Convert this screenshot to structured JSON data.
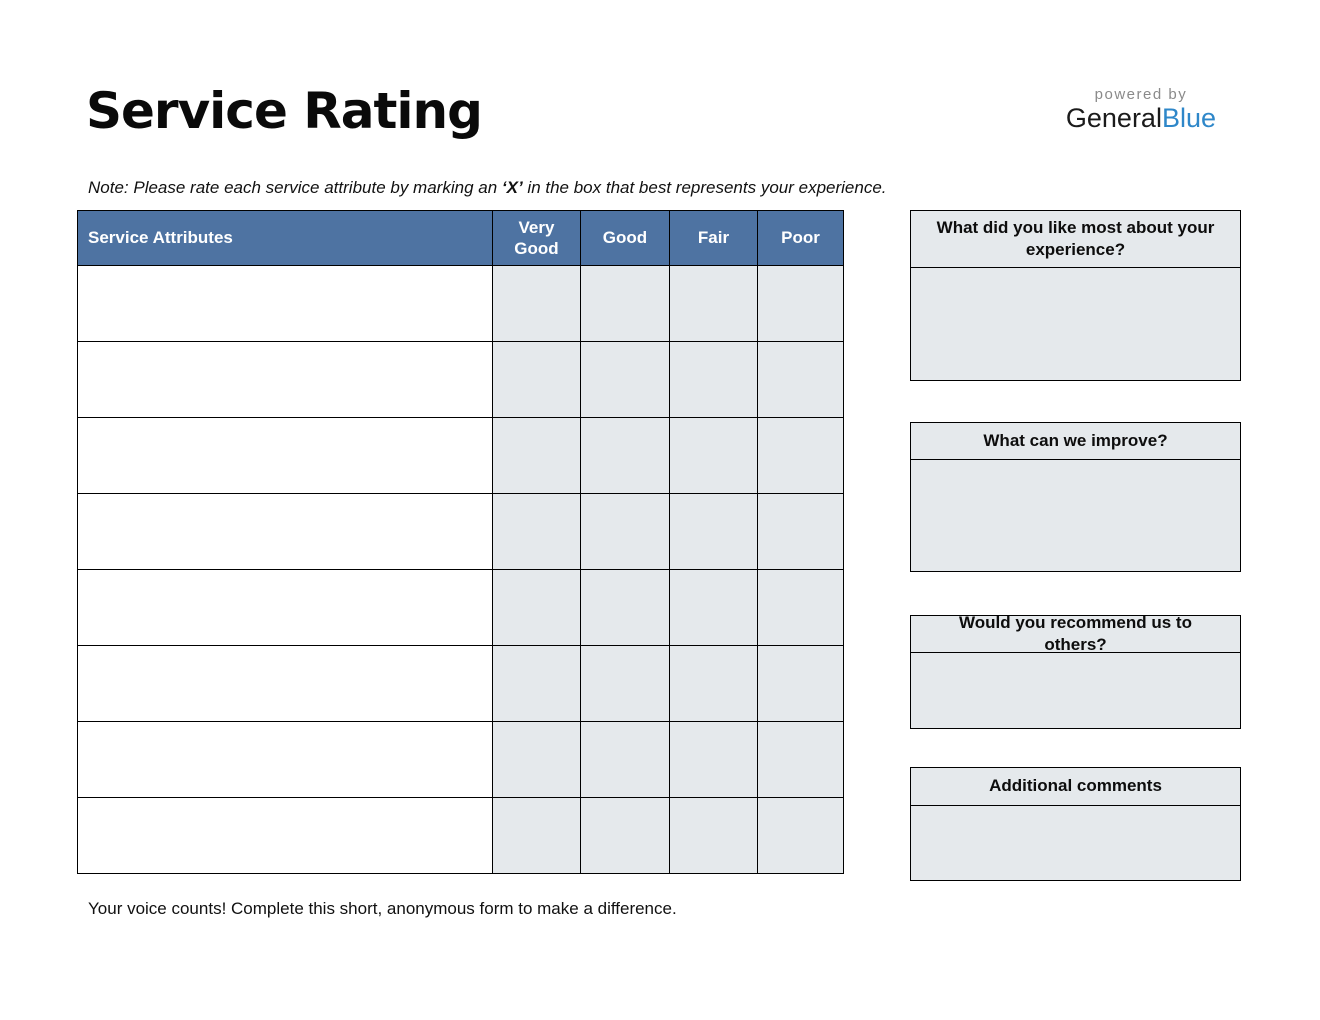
{
  "page": {
    "title": "Service Rating",
    "note_prefix": "Note: Please rate each service attribute by marking an ",
    "note_bold": "‘X’",
    "note_suffix": " in the box that best represents your experience.",
    "footer": "Your voice counts! Complete this short, anonymous form to make a difference."
  },
  "branding": {
    "powered_by": "powered by",
    "brand_first": "General",
    "brand_second": "Blue"
  },
  "colors": {
    "table_header_bg": "#4e73a2",
    "cell_gray_bg": "#e5e9ec",
    "brand_blue": "#2e87c9",
    "powered_by_gray": "#8a8a8a",
    "border_black": "#000000"
  },
  "table": {
    "columns": [
      "Service Attributes",
      "Very Good",
      "Good",
      "Fair",
      "Poor"
    ],
    "rows": [
      [
        "",
        "",
        "",
        "",
        ""
      ],
      [
        "",
        "",
        "",
        "",
        ""
      ],
      [
        "",
        "",
        "",
        "",
        ""
      ],
      [
        "",
        "",
        "",
        "",
        ""
      ],
      [
        "",
        "",
        "",
        "",
        ""
      ],
      [
        "",
        "",
        "",
        "",
        ""
      ],
      [
        "",
        "",
        "",
        "",
        ""
      ],
      [
        "",
        "",
        "",
        "",
        ""
      ]
    ]
  },
  "comment_boxes": [
    {
      "title": "What did you like most about your experience?",
      "value": ""
    },
    {
      "title": "What can we improve?",
      "value": ""
    },
    {
      "title": "Would you recommend us to others?",
      "value": ""
    },
    {
      "title": "Additional comments",
      "value": ""
    }
  ]
}
